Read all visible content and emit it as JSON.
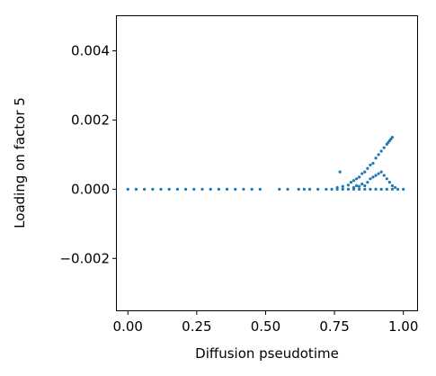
{
  "chart_data": {
    "type": "scatter",
    "title": "",
    "xlabel": "Diffusion pseudotime",
    "ylabel": "Loading on factor 5",
    "xlim": [
      -0.04,
      1.05
    ],
    "ylim": [
      -0.0035,
      0.005
    ],
    "xticks": [
      0.0,
      0.25,
      0.5,
      0.75,
      1.0
    ],
    "xtick_labels": [
      "0.00",
      "0.25",
      "0.50",
      "0.75",
      "1.00"
    ],
    "yticks": [
      -0.002,
      0.0,
      0.002,
      0.004
    ],
    "ytick_labels": [
      "−0.002",
      "0.000",
      "0.002",
      "0.004"
    ],
    "grid": false,
    "color": "#1f77b4",
    "series": [
      {
        "name": "cells",
        "description": "Points near zero loading for pseudotime 0 to 0.75; rising branch from about 0.8 to 0.96 reaching ~0.0015; secondary branch near 0.0004 around 0.9",
        "points": [
          [
            0.0,
            0.0
          ],
          [
            0.03,
            0.0
          ],
          [
            0.06,
            0.0
          ],
          [
            0.09,
            0.0
          ],
          [
            0.12,
            0.0
          ],
          [
            0.15,
            0.0
          ],
          [
            0.18,
            0.0
          ],
          [
            0.21,
            0.0
          ],
          [
            0.24,
            0.0
          ],
          [
            0.27,
            0.0
          ],
          [
            0.3,
            0.0
          ],
          [
            0.33,
            0.0
          ],
          [
            0.36,
            0.0
          ],
          [
            0.39,
            0.0
          ],
          [
            0.42,
            0.0
          ],
          [
            0.45,
            0.0
          ],
          [
            0.48,
            0.0
          ],
          [
            0.55,
            0.0
          ],
          [
            0.58,
            0.0
          ],
          [
            0.62,
            0.0
          ],
          [
            0.64,
            0.0
          ],
          [
            0.66,
            0.0
          ],
          [
            0.69,
            0.0
          ],
          [
            0.72,
            0.0
          ],
          [
            0.74,
            0.0
          ],
          [
            0.76,
            0.0
          ],
          [
            0.78,
            0.0
          ],
          [
            0.8,
            0.0
          ],
          [
            0.82,
            0.0
          ],
          [
            0.84,
            0.0
          ],
          [
            0.86,
            0.0
          ],
          [
            0.88,
            0.0
          ],
          [
            0.9,
            0.0
          ],
          [
            0.92,
            0.0
          ],
          [
            0.94,
            0.0
          ],
          [
            0.96,
            0.0
          ],
          [
            0.98,
            0.0
          ],
          [
            1.0,
            0.0
          ],
          [
            0.76,
            5e-05
          ],
          [
            0.78,
            8e-05
          ],
          [
            0.8,
            0.00012
          ],
          [
            0.81,
            0.0002
          ],
          [
            0.82,
            0.00025
          ],
          [
            0.83,
            0.0003
          ],
          [
            0.84,
            0.00035
          ],
          [
            0.85,
            0.00045
          ],
          [
            0.86,
            0.0005
          ],
          [
            0.87,
            0.0006
          ],
          [
            0.88,
            0.0007
          ],
          [
            0.89,
            0.00075
          ],
          [
            0.9,
            0.0009
          ],
          [
            0.91,
            0.001
          ],
          [
            0.92,
            0.0011
          ],
          [
            0.93,
            0.0012
          ],
          [
            0.94,
            0.0013
          ],
          [
            0.95,
            0.0014
          ],
          [
            0.96,
            0.0015
          ],
          [
            0.955,
            0.00145
          ],
          [
            0.945,
            0.00135
          ],
          [
            0.77,
            0.0005
          ],
          [
            0.88,
            0.0003
          ],
          [
            0.89,
            0.00035
          ],
          [
            0.9,
            0.0004
          ],
          [
            0.91,
            0.00045
          ],
          [
            0.92,
            0.0005
          ],
          [
            0.93,
            0.0004
          ],
          [
            0.94,
            0.0003
          ],
          [
            0.95,
            0.0002
          ],
          [
            0.96,
            0.0001
          ],
          [
            0.97,
            5e-05
          ],
          [
            0.85,
            0.00015
          ],
          [
            0.87,
            0.0002
          ],
          [
            0.86,
            0.0001
          ],
          [
            0.84,
            8e-05
          ],
          [
            0.83,
            0.0001
          ],
          [
            0.82,
            5e-05
          ]
        ]
      }
    ]
  }
}
